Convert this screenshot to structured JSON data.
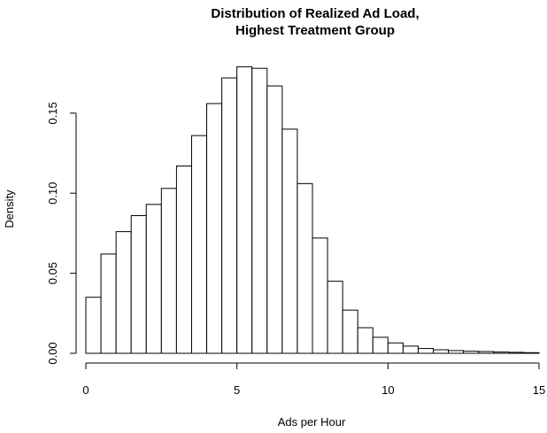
{
  "chart_data": {
    "type": "histogram",
    "title_lines": [
      "Distribution of Realized Ad Load,",
      "Highest Treatment Group"
    ],
    "xlabel": "Ads per Hour",
    "ylabel": "Density",
    "xlim": [
      0,
      15
    ],
    "ylim": [
      0,
      0.18
    ],
    "x_ticks": [
      0,
      5,
      10,
      15
    ],
    "x_tick_labels": [
      "0",
      "5",
      "10",
      "15"
    ],
    "y_ticks": [
      0,
      0.05,
      0.1,
      0.15
    ],
    "y_tick_labels": [
      "0.00",
      "0.05",
      "0.10",
      "0.15"
    ],
    "bin_width": 0.5,
    "bin_starts": [
      0,
      0.5,
      1,
      1.5,
      2,
      2.5,
      3,
      3.5,
      4,
      4.5,
      5,
      5.5,
      6,
      6.5,
      7,
      7.5,
      8,
      8.5,
      9,
      9.5,
      10,
      10.5,
      11,
      11.5,
      12,
      12.5,
      13,
      13.5,
      14,
      14.5
    ],
    "density": [
      0.035,
      0.062,
      0.076,
      0.086,
      0.093,
      0.103,
      0.117,
      0.136,
      0.156,
      0.172,
      0.179,
      0.178,
      0.167,
      0.14,
      0.106,
      0.072,
      0.045,
      0.027,
      0.016,
      0.01,
      0.0065,
      0.0045,
      0.003,
      0.0022,
      0.0017,
      0.0013,
      0.0011,
      0.0008,
      0.0006,
      0.0004
    ],
    "grid": false,
    "legend": "none",
    "colors": {
      "bar_fill": "#ffffff",
      "bar_stroke": "#000000",
      "axis": "#000000"
    }
  }
}
